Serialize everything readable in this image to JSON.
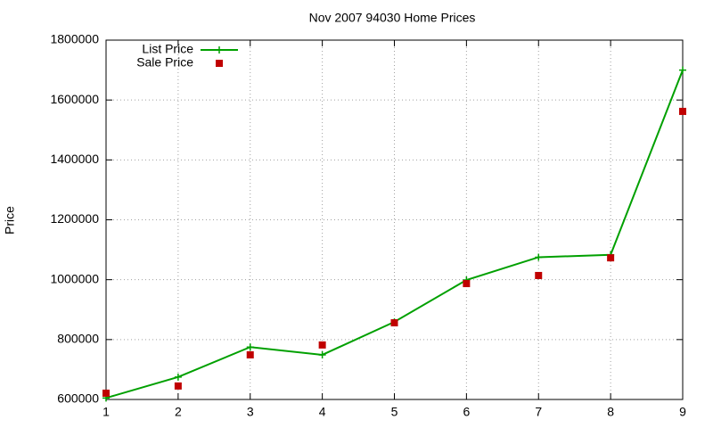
{
  "chart_data": {
    "type": "line",
    "title": "Nov 2007 94030 Home Prices",
    "y_label": "Price",
    "x": [
      1,
      2,
      3,
      4,
      5,
      6,
      7,
      8,
      9
    ],
    "series": [
      {
        "name": "List Price",
        "color": "#00a000",
        "line": true,
        "marker": "plus",
        "values": [
          605000,
          675000,
          775000,
          749000,
          859000,
          999000,
          1075000,
          1083000,
          1700000
        ]
      },
      {
        "name": "Sale Price",
        "color": "#c00000",
        "line": false,
        "marker": "square",
        "values": [
          621000,
          645000,
          749000,
          782000,
          856000,
          987000,
          1014000,
          1073000,
          1562000
        ]
      }
    ],
    "xlim": [
      1,
      9
    ],
    "xticks": [
      1,
      2,
      3,
      4,
      5,
      6,
      7,
      8,
      9
    ],
    "ylim": [
      600000,
      1800000
    ],
    "yticks": [
      600000,
      800000,
      1000000,
      1200000,
      1400000,
      1600000,
      1800000
    ],
    "grid": true,
    "legend": "top-left"
  }
}
